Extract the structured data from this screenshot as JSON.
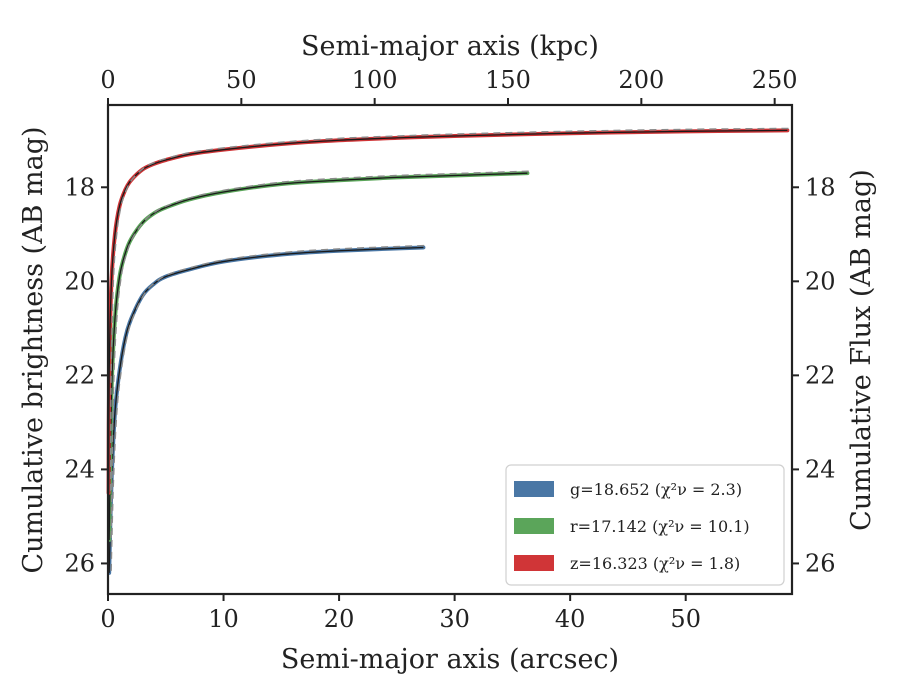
{
  "chart_data": {
    "type": "line",
    "title": "",
    "xlabel": "Semi-major axis (arcsec)",
    "x2label": "Semi-major axis (kpc)",
    "ylabel": "Cumulative brightness (AB mag)",
    "y2label": "Cumulative Flux (AB mag)",
    "xlim": [
      0,
      59.2
    ],
    "x2lim": [
      0,
      256.5
    ],
    "ylim": [
      26.65,
      16.25
    ],
    "y_inverted": true,
    "xticks": [
      0,
      10,
      20,
      30,
      40,
      50
    ],
    "x2ticks": [
      0,
      50,
      100,
      150,
      200,
      250
    ],
    "yticks": [
      18,
      20,
      22,
      24,
      26
    ],
    "grid": false,
    "legend_position": "lower-right",
    "series": [
      {
        "name": "g=18.652 (χ²ν = 2.3)",
        "band": "g",
        "color": "#4a77a5",
        "x": [
          0.1,
          0.3,
          0.6,
          1,
          1.5,
          2,
          3,
          4,
          5,
          7,
          10,
          15,
          20,
          27.3
        ],
        "y": [
          26.2,
          24.3,
          22.8,
          21.9,
          21.2,
          20.8,
          20.3,
          20.05,
          19.9,
          19.75,
          19.58,
          19.43,
          19.35,
          19.28
        ]
      },
      {
        "name": "r=17.142 (χ²ν = 10.1)",
        "band": "r",
        "color": "#5ba55a",
        "x": [
          0.1,
          0.3,
          0.6,
          1,
          1.5,
          2,
          3,
          4,
          5,
          7,
          10,
          15,
          20,
          25,
          30,
          36.3
        ],
        "y": [
          25.5,
          22.4,
          20.8,
          19.9,
          19.4,
          19.1,
          18.75,
          18.55,
          18.43,
          18.26,
          18.1,
          17.93,
          17.85,
          17.79,
          17.75,
          17.7
        ]
      },
      {
        "name": "z=16.323 (χ²ν = 1.8)",
        "band": "z",
        "color": "#d03537",
        "x": [
          0.05,
          0.1,
          0.3,
          0.6,
          1,
          1.5,
          2,
          3,
          4,
          5,
          7,
          10,
          15,
          20,
          25,
          30,
          40,
          50,
          58.8
        ],
        "y": [
          24.5,
          22.0,
          20.0,
          19.0,
          18.4,
          18.05,
          17.85,
          17.62,
          17.5,
          17.42,
          17.3,
          17.2,
          17.08,
          17.0,
          16.95,
          16.91,
          16.85,
          16.81,
          16.79
        ]
      }
    ]
  }
}
